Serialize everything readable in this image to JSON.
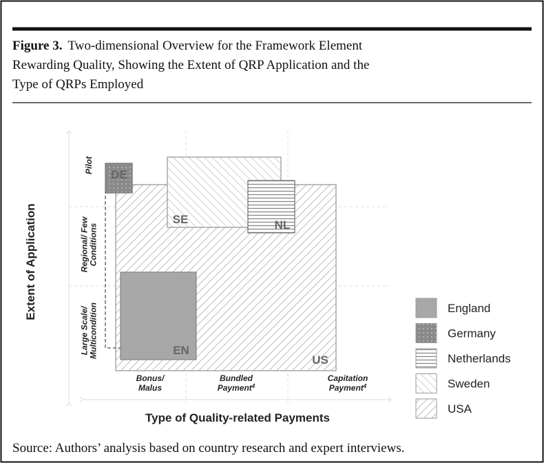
{
  "figure": {
    "caption_label": "Figure 3.",
    "caption_lines": [
      "Two-dimensional Overview for the Framework Element",
      "Rewarding Quality, Showing the Extent of QRP Application and the",
      "Type of QRPs Employed"
    ],
    "y_axis_title": "Extent of Application",
    "x_axis_title": "Type of Quality-related Payments",
    "y_levels": [
      {
        "lines": [
          "Pilot"
        ]
      },
      {
        "lines": [
          "Regional/ Few",
          "Conditions"
        ]
      },
      {
        "lines": [
          "Large Scale/",
          "Multicondition"
        ]
      }
    ],
    "x_levels": [
      {
        "lines": [
          "Bonus/",
          "Malus"
        ]
      },
      {
        "lines": [
          "Bundled",
          "Payment"
        ],
        "sup": "4"
      },
      {
        "lines": [
          "Capitation",
          "Payment"
        ],
        "sup": "4"
      }
    ],
    "boxes": [
      "US",
      "SE",
      "NL",
      "DE",
      "EN"
    ],
    "legend": [
      "England",
      "Germany",
      "Netherlands",
      "Sweden",
      "USA"
    ],
    "source": "Source: Authors’ analysis based on country research and expert interviews."
  }
}
